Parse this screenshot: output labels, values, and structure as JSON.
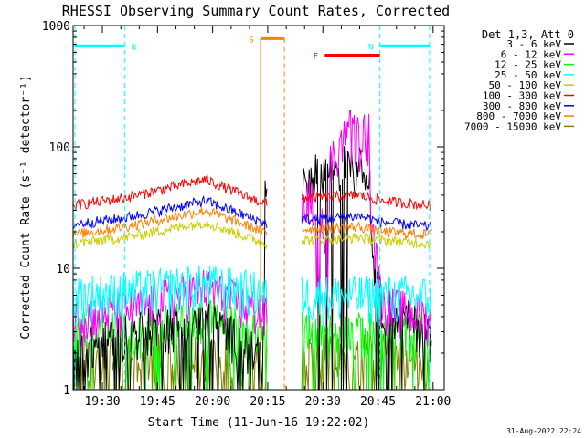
{
  "chart_data": {
    "type": "line",
    "title": "RHESSI Observing Summary Count Rates, Corrected",
    "xlabel": "Start Time (11-Jun-16 19:22:02)",
    "ylabel": "Corrected Count Rate (s⁻¹ detector⁻¹)",
    "y_scale": "log",
    "ylim": [
      1,
      1000
    ],
    "xlim_minutes_from_start": [
      0,
      101
    ],
    "x_tick_labels": [
      "19:30",
      "19:45",
      "20:00",
      "20:15",
      "20:30",
      "20:45",
      "21:00"
    ],
    "x_tick_minutes": [
      7.97,
      22.97,
      37.97,
      52.97,
      67.97,
      82.97,
      97.97
    ],
    "y_tick_labels": [
      "1",
      "10",
      "100",
      "1000"
    ],
    "y_tick_values": [
      1,
      10,
      100,
      1000
    ],
    "legend_header": "Det 1,3, Att 0",
    "legend_position": "right",
    "grid": false,
    "series": [
      {
        "name": "3 - 6 keV",
        "color": "#000000",
        "values_hint": [
          2,
          3,
          4,
          2,
          3,
          55,
          80,
          5,
          3
        ]
      },
      {
        "name": "6 - 12 keV",
        "color": "#ff00ff",
        "values_hint": [
          4,
          4.5,
          7,
          4.5,
          4,
          30,
          200,
          5,
          4
        ]
      },
      {
        "name": "12 - 25 keV",
        "color": "#00ff00",
        "values_hint": [
          3,
          3,
          4,
          3,
          3,
          3,
          3,
          3,
          3
        ]
      },
      {
        "name": "25 - 50 keV",
        "color": "#00ffff",
        "values_hint": [
          6,
          6.5,
          7.5,
          6.5,
          6,
          6,
          6,
          6,
          6
        ]
      },
      {
        "name": "50 - 100 keV",
        "color": "#cccc00",
        "values_hint": [
          16,
          18,
          24,
          17,
          16,
          17,
          18,
          17,
          16
        ]
      },
      {
        "name": "100 - 300 keV",
        "color": "#ff0000",
        "values_hint": [
          33,
          38,
          54,
          36,
          34,
          38,
          40,
          36,
          33
        ]
      },
      {
        "name": "300 - 800 keV",
        "color": "#0000ff",
        "values_hint": [
          23,
          26,
          36,
          25,
          23,
          25,
          27,
          24,
          22
        ]
      },
      {
        "name": "800 - 7000 keV",
        "color": "#ff8000",
        "values_hint": [
          19,
          22,
          30,
          21,
          19,
          21,
          22,
          20,
          19
        ]
      },
      {
        "name": "7000 - 15000 keV",
        "color": "#808000",
        "values_hint": [
          1.8,
          2,
          2,
          2,
          1.8,
          2,
          2,
          2,
          1.8
        ]
      }
    ],
    "annotations": [
      {
        "label": "N",
        "color": "#00ffff",
        "x_start_minute": 0.5,
        "x_end_minute": 14,
        "y": 680
      },
      {
        "label": "N",
        "color": "#00ffff",
        "x_start_minute": 83.5,
        "x_end_minute": 97,
        "y": 680
      },
      {
        "label": "S",
        "color": "#ff8000",
        "x_start_minute": 51,
        "x_end_minute": 57.5,
        "y": 780
      },
      {
        "label": "F",
        "color": "#ff0000",
        "x_start_minute": 68.5,
        "x_end_minute": 83.5,
        "y": 570
      }
    ],
    "data_gaps_minutes": [
      [
        53,
        62
      ]
    ],
    "timestamp": "31-Aug-2022 22:24"
  }
}
